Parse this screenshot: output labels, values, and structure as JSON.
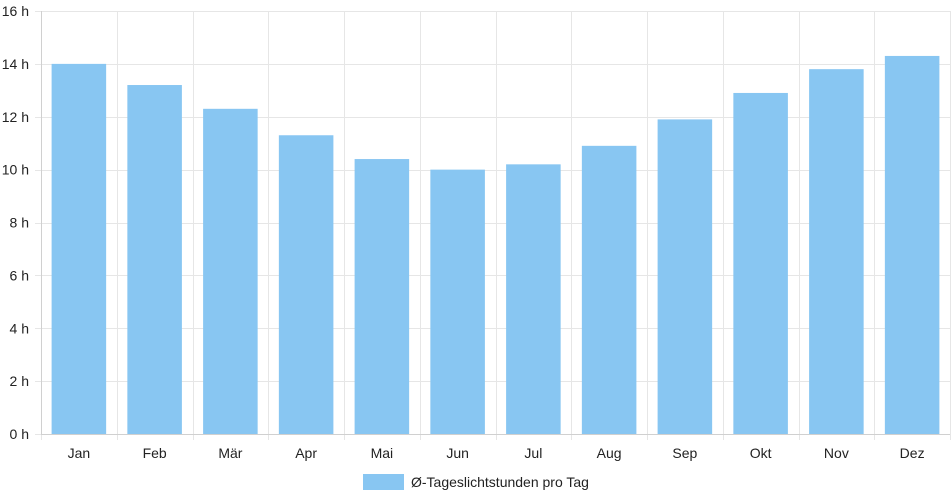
{
  "colors": {
    "bar": "#88c6f2",
    "grid": "#e6e6e6",
    "text": "#222222"
  },
  "chart_data": {
    "type": "bar",
    "title": "",
    "xlabel": "",
    "ylabel": "",
    "categories": [
      "Jan",
      "Feb",
      "Mär",
      "Apr",
      "Mai",
      "Jun",
      "Jul",
      "Aug",
      "Sep",
      "Okt",
      "Nov",
      "Dez"
    ],
    "series": [
      {
        "name": "Ø-Tageslichtstunden pro Tag",
        "values": [
          14.0,
          13.2,
          12.3,
          11.3,
          10.4,
          10.0,
          10.2,
          10.9,
          11.9,
          12.9,
          13.8,
          14.3
        ]
      }
    ],
    "ylim": [
      0,
      16
    ],
    "yticks": [
      0,
      2,
      4,
      6,
      8,
      10,
      12,
      14,
      16
    ],
    "ytick_labels": [
      "0 h",
      "2 h",
      "4 h",
      "6 h",
      "8 h",
      "10 h",
      "12 h",
      "14 h",
      "16 h"
    ],
    "grid": true,
    "legend_position": "bottom"
  }
}
